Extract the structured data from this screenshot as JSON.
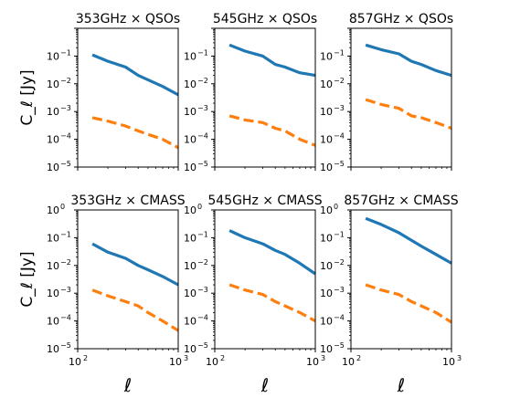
{
  "chart_data": [
    {
      "type": "line",
      "title": "353GHz × QSOs",
      "xlabel": "",
      "ylabel": "C_ℓ [Jy]",
      "xscale": "log",
      "yscale": "log",
      "xlim": [
        100,
        1000
      ],
      "ylim": [
        1e-05,
        1
      ],
      "series": [
        {
          "style": "solid",
          "x": [
            140,
            200,
            300,
            400,
            500,
            700,
            1000
          ],
          "y": [
            0.11,
            0.065,
            0.04,
            0.02,
            0.014,
            0.008,
            0.004
          ]
        },
        {
          "style": "dashed",
          "x": [
            140,
            200,
            300,
            400,
            500,
            700,
            1000
          ],
          "y": [
            0.0006,
            0.00045,
            0.0003,
            0.0002,
            0.00015,
            0.0001,
            5e-05
          ]
        }
      ]
    },
    {
      "type": "line",
      "title": "545GHz × QSOs",
      "xlabel": "",
      "ylabel": "",
      "xscale": "log",
      "yscale": "log",
      "xlim": [
        100,
        1000
      ],
      "ylim": [
        1e-05,
        1
      ],
      "series": [
        {
          "style": "solid",
          "x": [
            140,
            200,
            300,
            400,
            500,
            700,
            1000
          ],
          "y": [
            0.25,
            0.15,
            0.1,
            0.05,
            0.04,
            0.025,
            0.02
          ]
        },
        {
          "style": "dashed",
          "x": [
            140,
            200,
            300,
            400,
            500,
            700,
            1000
          ],
          "y": [
            0.0007,
            0.0005,
            0.0004,
            0.00025,
            0.0002,
            0.0001,
            6e-05
          ]
        }
      ]
    },
    {
      "type": "line",
      "title": "857GHz × QSOs",
      "xlabel": "",
      "ylabel": "",
      "xscale": "log",
      "yscale": "log",
      "xlim": [
        100,
        1000
      ],
      "ylim": [
        1e-05,
        1
      ],
      "series": [
        {
          "style": "solid",
          "x": [
            140,
            200,
            300,
            400,
            500,
            700,
            1000
          ],
          "y": [
            0.25,
            0.17,
            0.12,
            0.065,
            0.05,
            0.03,
            0.02
          ]
        },
        {
          "style": "dashed",
          "x": [
            140,
            200,
            300,
            400,
            500,
            700,
            1000
          ],
          "y": [
            0.0027,
            0.0018,
            0.0013,
            0.0007,
            0.0006,
            0.0004,
            0.00025
          ]
        }
      ]
    },
    {
      "type": "line",
      "title": "353GHz × CMASS",
      "xlabel": "ℓ",
      "ylabel": "C_ℓ [Jy]",
      "xscale": "log",
      "yscale": "log",
      "xlim": [
        100,
        1000
      ],
      "ylim": [
        1e-05,
        1
      ],
      "series": [
        {
          "style": "solid",
          "x": [
            140,
            200,
            300,
            400,
            500,
            700,
            1000
          ],
          "y": [
            0.06,
            0.03,
            0.018,
            0.01,
            0.007,
            0.004,
            0.002
          ]
        },
        {
          "style": "dashed",
          "x": [
            140,
            200,
            300,
            400,
            500,
            700,
            1000
          ],
          "y": [
            0.0013,
            0.0008,
            0.0005,
            0.00035,
            0.0002,
            0.0001,
            4.5e-05
          ]
        }
      ]
    },
    {
      "type": "line",
      "title": "545GHz × CMASS",
      "xlabel": "ℓ",
      "ylabel": "",
      "xscale": "log",
      "yscale": "log",
      "xlim": [
        100,
        1000
      ],
      "ylim": [
        1e-05,
        1
      ],
      "series": [
        {
          "style": "solid",
          "x": [
            140,
            200,
            300,
            400,
            500,
            700,
            1000
          ],
          "y": [
            0.18,
            0.1,
            0.06,
            0.035,
            0.025,
            0.012,
            0.005
          ]
        },
        {
          "style": "dashed",
          "x": [
            140,
            200,
            300,
            400,
            500,
            700,
            1000
          ],
          "y": [
            0.002,
            0.0013,
            0.0009,
            0.0005,
            0.00035,
            0.0002,
            0.0001
          ]
        }
      ]
    },
    {
      "type": "line",
      "title": "857GHz × CMASS",
      "xlabel": "ℓ",
      "ylabel": "",
      "xscale": "log",
      "yscale": "log",
      "xlim": [
        100,
        1000
      ],
      "ylim": [
        1e-05,
        1
      ],
      "series": [
        {
          "style": "solid",
          "x": [
            140,
            200,
            300,
            400,
            500,
            700,
            1000
          ],
          "y": [
            0.5,
            0.3,
            0.15,
            0.08,
            0.05,
            0.025,
            0.012
          ]
        },
        {
          "style": "dashed",
          "x": [
            140,
            200,
            300,
            400,
            500,
            700,
            1000
          ],
          "y": [
            0.002,
            0.0013,
            0.0009,
            0.0005,
            0.00035,
            0.0002,
            9e-05
          ]
        }
      ]
    }
  ],
  "ytick_labels": [
    {
      "base": "10",
      "exp": "0"
    },
    {
      "base": "10",
      "exp": "−1"
    },
    {
      "base": "10",
      "exp": "−2"
    },
    {
      "base": "10",
      "exp": "−3"
    },
    {
      "base": "10",
      "exp": "−4"
    },
    {
      "base": "10",
      "exp": "−5"
    }
  ],
  "xtick_labels": [
    {
      "base": "10",
      "exp": "2"
    },
    {
      "base": "10",
      "exp": "3"
    }
  ],
  "colors": {
    "solid": "#1f77b4",
    "dashed": "#ff7f0e",
    "axis": "#000000"
  }
}
